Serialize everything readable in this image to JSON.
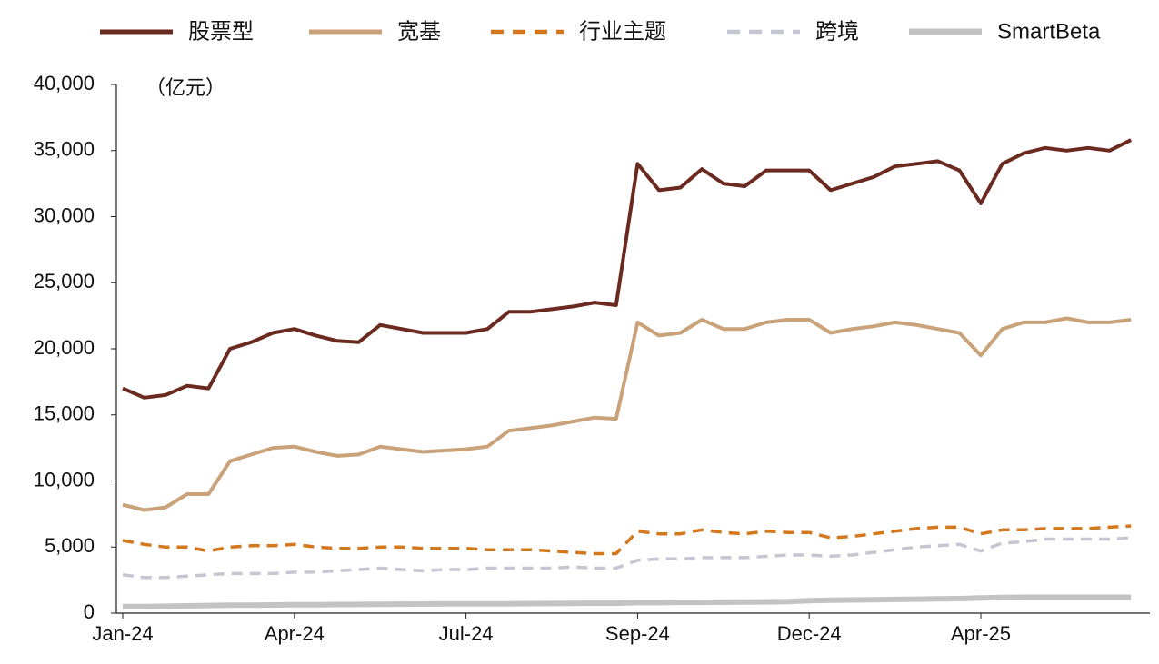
{
  "chart_data": {
    "type": "line",
    "y_label": "（亿元）",
    "categories": [
      "Jan-24",
      null,
      null,
      null,
      null,
      null,
      null,
      null,
      "Apr-24",
      null,
      null,
      null,
      null,
      null,
      null,
      null,
      "Jul-24",
      null,
      null,
      null,
      null,
      null,
      null,
      null,
      "Sep-24",
      null,
      null,
      null,
      null,
      null,
      null,
      null,
      "Dec-24",
      null,
      null,
      null,
      null,
      null,
      null,
      null,
      "Apr-25",
      null,
      null,
      null,
      null,
      null,
      null,
      null
    ],
    "ylim": [
      0,
      40000
    ],
    "yticks": [
      0,
      {
        "value": 5000,
        "label": "5,000"
      },
      {
        "value": 10000,
        "label": "10,000"
      },
      {
        "value": 15000,
        "label": "15,000"
      },
      {
        "value": 20000,
        "label": "20,000"
      },
      {
        "value": 25000,
        "label": "25,000"
      },
      {
        "value": 30000,
        "label": "30,000"
      },
      {
        "value": 35000,
        "label": "35,000"
      },
      {
        "value": 40000,
        "label": "40,000"
      }
    ],
    "grid": false,
    "legend": "top",
    "series": [
      {
        "name": "股票型",
        "color": "#6b2a1f",
        "style": "solid",
        "values": [
          17000,
          16300,
          16500,
          17200,
          17000,
          20000,
          20500,
          21200,
          21500,
          21000,
          20600,
          20500,
          21800,
          21500,
          21200,
          21200,
          21200,
          21500,
          22800,
          22800,
          23000,
          23200,
          23500,
          23300,
          34000,
          32000,
          32200,
          33600,
          32500,
          32300,
          33500,
          33500,
          33500,
          32000,
          32500,
          33000,
          33800,
          34000,
          34200,
          33500,
          31000,
          34000,
          34800,
          35200,
          35000,
          35200,
          35000,
          35800
        ]
      },
      {
        "name": "宽基",
        "color": "#c9a27a",
        "style": "solid",
        "values": [
          8200,
          7800,
          8000,
          9000,
          9000,
          11500,
          12000,
          12500,
          12600,
          12200,
          11900,
          12000,
          12600,
          12400,
          12200,
          12300,
          12400,
          12600,
          13800,
          14000,
          14200,
          14500,
          14800,
          14700,
          22000,
          21000,
          21200,
          22200,
          21500,
          21500,
          22000,
          22200,
          22200,
          21200,
          21500,
          21700,
          22000,
          21800,
          21500,
          21200,
          19500,
          21500,
          22000,
          22000,
          22300,
          22000,
          22000,
          22200
        ]
      },
      {
        "name": "行业主题",
        "color": "#d4781e",
        "style": "dashed",
        "values": [
          5500,
          5200,
          5000,
          5000,
          4700,
          5000,
          5100,
          5100,
          5200,
          5000,
          4900,
          4900,
          5000,
          5000,
          4900,
          4900,
          4900,
          4800,
          4800,
          4800,
          4700,
          4600,
          4500,
          4500,
          6200,
          6000,
          6000,
          6300,
          6100,
          6000,
          6200,
          6100,
          6100,
          5700,
          5800,
          6000,
          6200,
          6400,
          6500,
          6500,
          6000,
          6300,
          6300,
          6400,
          6400,
          6400,
          6500,
          6600
        ]
      },
      {
        "name": "跨境",
        "color": "#c6c6d2",
        "style": "dashed",
        "values": [
          2900,
          2700,
          2700,
          2800,
          2900,
          3000,
          3000,
          3000,
          3100,
          3100,
          3200,
          3300,
          3400,
          3300,
          3200,
          3300,
          3300,
          3400,
          3400,
          3400,
          3400,
          3500,
          3400,
          3400,
          4000,
          4100,
          4100,
          4200,
          4200,
          4200,
          4300,
          4400,
          4400,
          4300,
          4400,
          4600,
          4800,
          5000,
          5100,
          5200,
          4700,
          5300,
          5400,
          5600,
          5600,
          5600,
          5600,
          5700
        ]
      },
      {
        "name": "SmartBeta",
        "color": "#c3c3c3",
        "style": "solid",
        "values": [
          500,
          500,
          520,
          550,
          580,
          600,
          600,
          620,
          630,
          640,
          650,
          660,
          670,
          680,
          690,
          700,
          700,
          700,
          710,
          720,
          730,
          740,
          750,
          750,
          800,
          800,
          820,
          820,
          830,
          840,
          850,
          870,
          950,
          980,
          1000,
          1020,
          1040,
          1060,
          1080,
          1100,
          1150,
          1180,
          1200,
          1200,
          1200,
          1200,
          1200,
          1200
        ]
      }
    ]
  }
}
